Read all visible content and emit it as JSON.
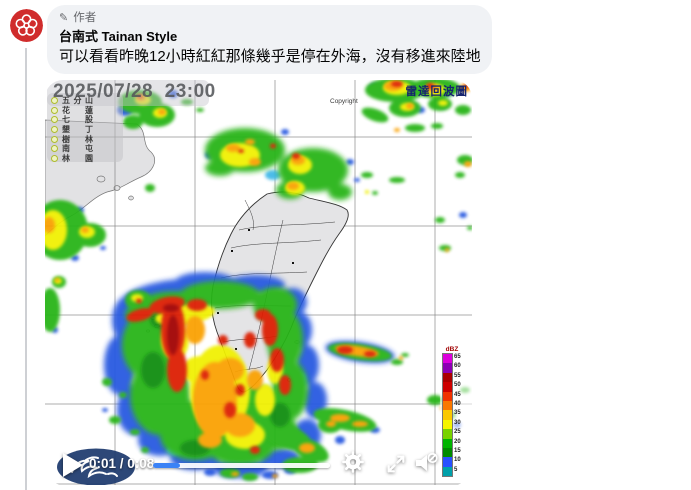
{
  "post": {
    "badge": {
      "icon": "pencil-icon",
      "label": "作者"
    },
    "author_name": "台南式",
    "author_name_en": "Tainan Style",
    "comment_text": "可以看看昨晚12小時紅紅那條幾乎是停在外海，沒有移進來陸地"
  },
  "video": {
    "timestamp": "2025/07/28  23:00",
    "stations": [
      "五分山",
      "花蓮",
      "七股",
      "墾丁",
      "樹林",
      "南屯",
      "林園"
    ],
    "map_title": "雷達回波圖",
    "map_copyright": "Copyright",
    "scale": {
      "label": "dBZ",
      "ticks": [
        "65",
        "60",
        "55",
        "50",
        "45",
        "40",
        "35",
        "30",
        "25",
        "20",
        "15",
        "10",
        "5"
      ],
      "colors": [
        "#dc00dc",
        "#8c00b4",
        "#aa0000",
        "#cd0000",
        "#f03200",
        "#fa7800",
        "#fac800",
        "#f5f500",
        "#78d200",
        "#00b400",
        "#008c00",
        "#2850ff",
        "#00a0aa"
      ]
    },
    "controls": {
      "current_time": "0:01",
      "separator": " / ",
      "duration": "0:08",
      "progress_pct": 15
    }
  },
  "colors": {
    "bubble_bg": "#f0f2f5",
    "progress_accent": "#3b82f6",
    "logo_navy": "#1d3a6e",
    "avatar_red": "#d02c2c"
  }
}
